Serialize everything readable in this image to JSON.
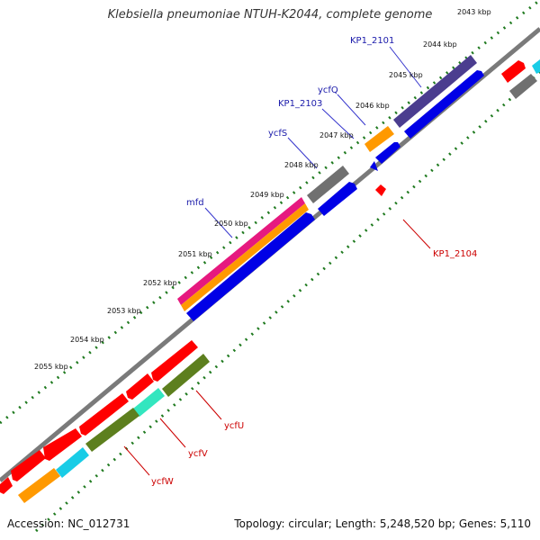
{
  "title": "Klebsiella pneumoniae NTUH-K2044, complete genome",
  "footer": {
    "accession": "Accession: NC_012731",
    "stats": "Topology: circular; Length: 5,248,520 bp; Genes: 5,110"
  },
  "ticks": [
    "2043 kbp",
    "2044 kbp",
    "2045 kbp",
    "2046 kbp",
    "2047 kbp",
    "2048 kbp",
    "2049 kbp",
    "2050 kbp",
    "2051 kbp",
    "2052 kbp",
    "2053 kbp",
    "2054 kbp",
    "2055 kbp"
  ],
  "gene_labels": {
    "forward": [
      "KP1_2101",
      "ycfQ",
      "KP1_2103",
      "ycfS",
      "mfd"
    ],
    "reverse": [
      "KP1_2104",
      "ycfU",
      "ycfV",
      "ycfW"
    ]
  },
  "colors": {
    "backbone": "#808080",
    "tick_dots": "#1f7a1f",
    "blue": "#0000e6",
    "navy": "#4b3d8f",
    "orange": "#ff9900",
    "gray": "#707070",
    "pink": "#e6197f",
    "red": "#ff0000",
    "olive": "#5d7f1e",
    "aqua": "#33e6bf",
    "cyan": "#19cce6",
    "fwd_label": "#1a1aaa",
    "rev_label": "#cc0000"
  }
}
